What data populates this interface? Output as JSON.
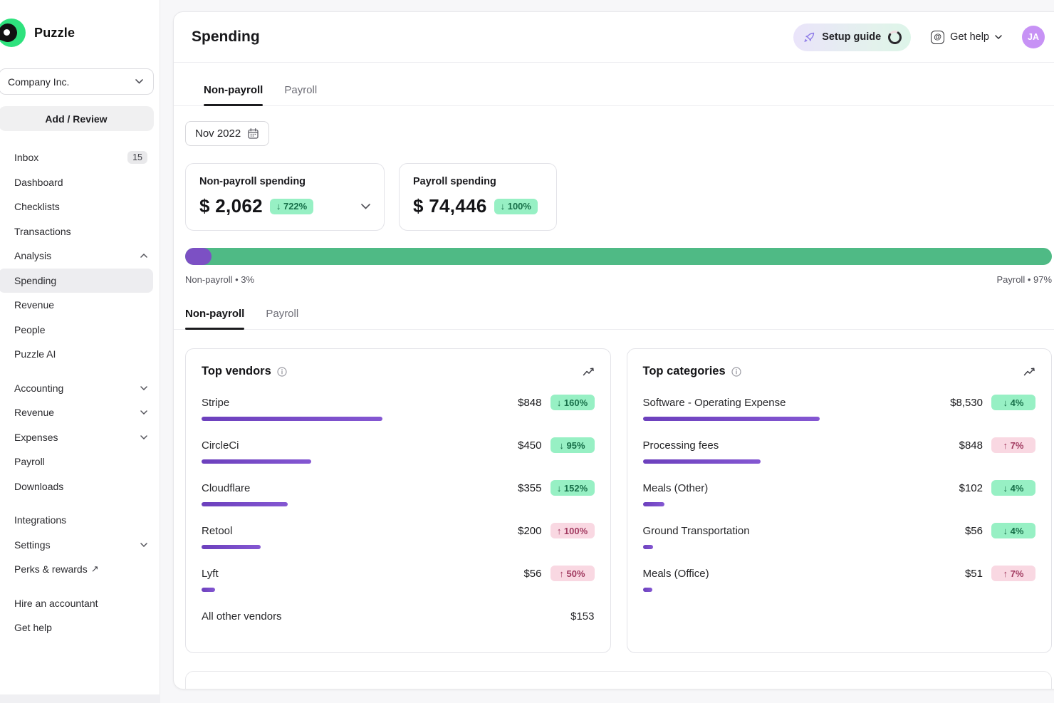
{
  "brand": {
    "name": "Puzzle"
  },
  "colors": {
    "brand_green": "#2ee27d",
    "accent_purple": "#7c50c4",
    "bar_green": "#4fba85",
    "badge_green_bg": "#97f0c4",
    "badge_green_text": "#176f49",
    "badge_pink_bg": "#f9d8e2",
    "badge_pink_text": "#a13a60",
    "avatar_bg": "#c792f5",
    "selected_nav_bg": "#ededf0"
  },
  "sidebar": {
    "company": "Company Inc.",
    "add_review": "Add / Review",
    "items": [
      {
        "label": "Inbox",
        "badge": "15"
      },
      {
        "label": "Dashboard"
      },
      {
        "label": "Checklists"
      },
      {
        "label": "Transactions"
      },
      {
        "label": "Analysis",
        "chevron": "up"
      },
      {
        "label": "Spending",
        "selected": true
      },
      {
        "label": "Revenue"
      },
      {
        "label": "People"
      },
      {
        "label": "Puzzle AI"
      },
      {
        "label": "Accounting",
        "chevron": "down"
      },
      {
        "label": "Revenue",
        "chevron": "down"
      },
      {
        "label": "Expenses",
        "chevron": "down"
      },
      {
        "label": "Payroll"
      },
      {
        "label": "Downloads"
      },
      {
        "label": "Integrations"
      },
      {
        "label": "Settings",
        "chevron": "down"
      },
      {
        "label": "Perks & rewards",
        "external": "↗"
      },
      {
        "label": "Hire an accountant"
      },
      {
        "label": "Get help"
      }
    ]
  },
  "header": {
    "title": "Spending",
    "setup_guide": "Setup guide",
    "get_help": "Get help",
    "avatar_initials": "JA"
  },
  "tabs_top": {
    "labels": [
      "Non-payroll",
      "Payroll"
    ],
    "active": "Non-payroll"
  },
  "tabs_mid": {
    "labels": [
      "Non-payroll",
      "Payroll"
    ],
    "active": "Non-payroll"
  },
  "date_filter": {
    "value": "Nov 2022"
  },
  "summary": {
    "nonpayroll": {
      "title": "Non-payroll spending",
      "amount": "$ 2,062",
      "delta": "↓ 722%",
      "trend": "down"
    },
    "payroll": {
      "title": "Payroll spending",
      "amount": "$ 74,446",
      "delta": "↓ 100%",
      "trend": "down"
    }
  },
  "split_bar": {
    "nonpayroll_pct": 3,
    "payroll_pct": 97,
    "left_label": "Non-payroll • 3%",
    "right_label": "Payroll • 97%"
  },
  "vendors": {
    "title": "Top vendors",
    "rows": [
      {
        "name": "Stripe",
        "amount": "$848",
        "delta": "↓ 160%",
        "trend": "down",
        "bar_pct": 46
      },
      {
        "name": "CircleCi",
        "amount": "$450",
        "delta": "↓ 95%",
        "trend": "down",
        "bar_pct": 28
      },
      {
        "name": "Cloudflare",
        "amount": "$355",
        "delta": "↓ 152%",
        "trend": "down",
        "bar_pct": 22
      },
      {
        "name": "Retool",
        "amount": "$200",
        "delta": "↑ 100%",
        "trend": "up",
        "bar_pct": 15
      },
      {
        "name": "Lyft",
        "amount": "$56",
        "delta": "↑ 50%",
        "trend": "up",
        "bar_pct": 3.5
      }
    ],
    "footer": {
      "name": "All other vendors",
      "amount": "$153"
    }
  },
  "categories": {
    "title": "Top categories",
    "rows": [
      {
        "name": "Software - Operating Expense",
        "amount": "$8,530",
        "delta": "↓ 4%",
        "trend": "down",
        "bar_pct": 45
      },
      {
        "name": "Processing fees",
        "amount": "$848",
        "delta": "↑ 7%",
        "trend": "up",
        "bar_pct": 30
      },
      {
        "name": "Meals (Other)",
        "amount": "$102",
        "delta": "↓ 4%",
        "trend": "down",
        "bar_pct": 5.5
      },
      {
        "name": "Ground Transportation",
        "amount": "$56",
        "delta": "↓ 4%",
        "trend": "down",
        "bar_pct": 2.7
      },
      {
        "name": "Meals (Office)",
        "amount": "$51",
        "delta": "↑ 7%",
        "trend": "up",
        "bar_pct": 2.5
      }
    ]
  }
}
